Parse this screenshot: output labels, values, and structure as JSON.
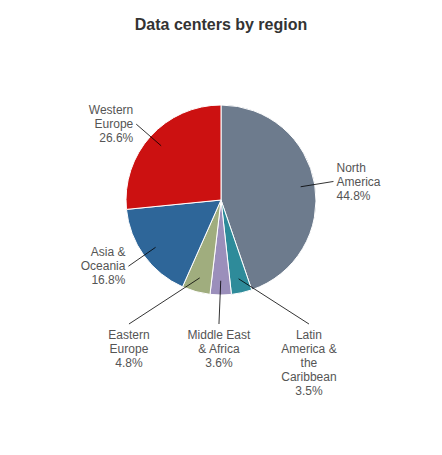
{
  "chart_data": {
    "type": "pie",
    "title": "Data centers by region",
    "categories": [
      "North\nAmerica",
      "Latin\nAmerica &\nthe\nCaribbean",
      "Middle East\n& Africa",
      "Eastern\nEurope",
      "Asia &\nOceania",
      "Western\nEurope"
    ],
    "values": [
      44.8,
      3.5,
      3.6,
      4.8,
      16.8,
      26.6
    ],
    "value_labels": [
      "44.8%",
      "3.5%",
      "3.6%",
      "4.8%",
      "16.8%",
      "26.6%"
    ],
    "data_labels": true,
    "colors": [
      "#6d7b8d",
      "#2e8b9a",
      "#9b8fbb",
      "#a0ad7e",
      "#2e6699",
      "#cc1111"
    ]
  }
}
